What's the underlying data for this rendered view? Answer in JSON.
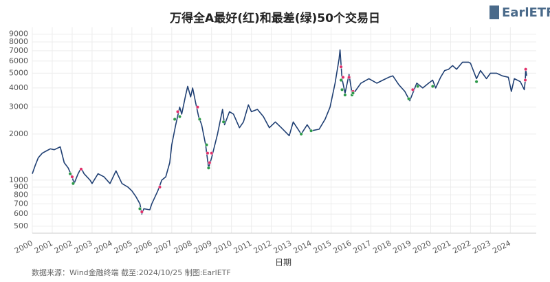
{
  "chart_data": {
    "type": "line",
    "title": "万得全A最好(红)和最差(绿)50个交易日",
    "logo": "EarlETF",
    "x_label": "日期",
    "source": "数据来源：Wind金融终端 截至:2024/10/25 制图:EarlETF",
    "log_y": true,
    "grid": true,
    "xlim": [
      2000,
      2025.3
    ],
    "xticks": [
      2000,
      2001,
      2002,
      2003,
      2004,
      2005,
      2006,
      2007,
      2008,
      2009,
      2010,
      2011,
      2012,
      2013,
      2014,
      2015,
      2016,
      2017,
      2018,
      2019,
      2020,
      2021,
      2022,
      2023,
      2024
    ],
    "ylim": [
      450,
      10000
    ],
    "yticks": [
      500,
      600,
      700,
      800,
      900,
      1000,
      2000,
      3000,
      4000,
      5000,
      6000,
      7000,
      8000,
      9000
    ],
    "series": [
      {
        "kind": "line",
        "color": "#1f3f73",
        "x": [
          2000.0,
          2000.15,
          2000.3,
          2000.5,
          2000.7,
          2000.9,
          2001.1,
          2001.4,
          2001.6,
          2001.8,
          2002.0,
          2002.1,
          2002.3,
          2002.45,
          2002.6,
          2002.9,
          2003.0,
          2003.3,
          2003.6,
          2003.9,
          2004.2,
          2004.5,
          2004.8,
          2005.0,
          2005.2,
          2005.4,
          2005.5,
          2005.6,
          2005.9,
          2006.0,
          2006.3,
          2006.5,
          2006.7,
          2006.9,
          2007.0,
          2007.2,
          2007.4,
          2007.5,
          2007.7,
          2007.8,
          2007.95,
          2008.05,
          2008.2,
          2008.35,
          2008.5,
          2008.7,
          2008.85,
          2009.0,
          2009.3,
          2009.55,
          2009.65,
          2009.9,
          2010.1,
          2010.4,
          2010.6,
          2010.85,
          2011.0,
          2011.3,
          2011.6,
          2011.9,
          2012.2,
          2012.5,
          2012.9,
          2013.1,
          2013.5,
          2013.8,
          2014.0,
          2014.4,
          2014.7,
          2014.95,
          2015.2,
          2015.4,
          2015.45,
          2015.55,
          2015.7,
          2015.9,
          2016.05,
          2016.2,
          2016.5,
          2016.9,
          2017.3,
          2017.6,
          2017.9,
          2018.1,
          2018.4,
          2018.7,
          2018.95,
          2019.3,
          2019.6,
          2019.9,
          2020.1,
          2020.25,
          2020.5,
          2020.7,
          2020.9,
          2021.1,
          2021.3,
          2021.6,
          2021.9,
          2022.0,
          2022.3,
          2022.5,
          2022.8,
          2023.0,
          2023.3,
          2023.6,
          2023.9,
          2024.05,
          2024.2,
          2024.5,
          2024.7,
          2024.75,
          2024.77,
          2024.82
        ],
        "values": [
          1100,
          1250,
          1400,
          1500,
          1550,
          1600,
          1580,
          1650,
          1300,
          1200,
          1050,
          950,
          1100,
          1200,
          1100,
          1000,
          950,
          1100,
          1050,
          950,
          1150,
          950,
          900,
          850,
          780,
          700,
          600,
          650,
          640,
          700,
          850,
          1000,
          1050,
          1300,
          1700,
          2300,
          3000,
          2700,
          3600,
          4100,
          3500,
          4000,
          3200,
          2600,
          2300,
          1700,
          1200,
          1400,
          2000,
          2900,
          2300,
          2800,
          2700,
          2200,
          2400,
          3100,
          2800,
          2900,
          2600,
          2200,
          2400,
          2200,
          1950,
          2400,
          2000,
          2300,
          2100,
          2150,
          2500,
          3000,
          4300,
          6200,
          7100,
          4600,
          3700,
          4900,
          3700,
          3800,
          4300,
          4600,
          4300,
          4500,
          4700,
          4800,
          4200,
          3800,
          3300,
          4300,
          4000,
          4300,
          4500,
          4000,
          4700,
          5200,
          5300,
          5600,
          5300,
          5900,
          5900,
          5800,
          4600,
          5200,
          4600,
          5000,
          5000,
          4800,
          4700,
          3800,
          4600,
          4400,
          3900,
          4500,
          5300,
          4800
        ]
      },
      {
        "kind": "points",
        "color": "#e0306a",
        "x": [
          2002.0,
          2002.45,
          2005.5,
          2006.4,
          2007.3,
          2008.3,
          2008.8,
          2008.9,
          2009.0,
          2015.5,
          2015.6,
          2015.9,
          2016.1,
          2019.1,
          2024.75,
          2024.77
        ],
        "values": [
          1050,
          1180,
          620,
          900,
          2800,
          3000,
          1500,
          1300,
          1500,
          5500,
          4700,
          4700,
          3800,
          3900,
          4500,
          5300
        ]
      },
      {
        "kind": "points",
        "color": "#2e9a4a",
        "x": [
          2001.9,
          2002.05,
          2005.4,
          2007.15,
          2007.4,
          2008.4,
          2008.75,
          2008.85,
          2009.6,
          2013.5,
          2014.0,
          2015.5,
          2015.55,
          2015.7,
          2016.05,
          2016.1,
          2018.9,
          2019.35,
          2020.1,
          2022.3
        ],
        "values": [
          1100,
          950,
          650,
          2500,
          2600,
          2500,
          1700,
          1200,
          2400,
          2000,
          2100,
          4500,
          3900,
          3600,
          3600,
          3700,
          3400,
          4100,
          4100,
          4400
        ]
      }
    ]
  }
}
